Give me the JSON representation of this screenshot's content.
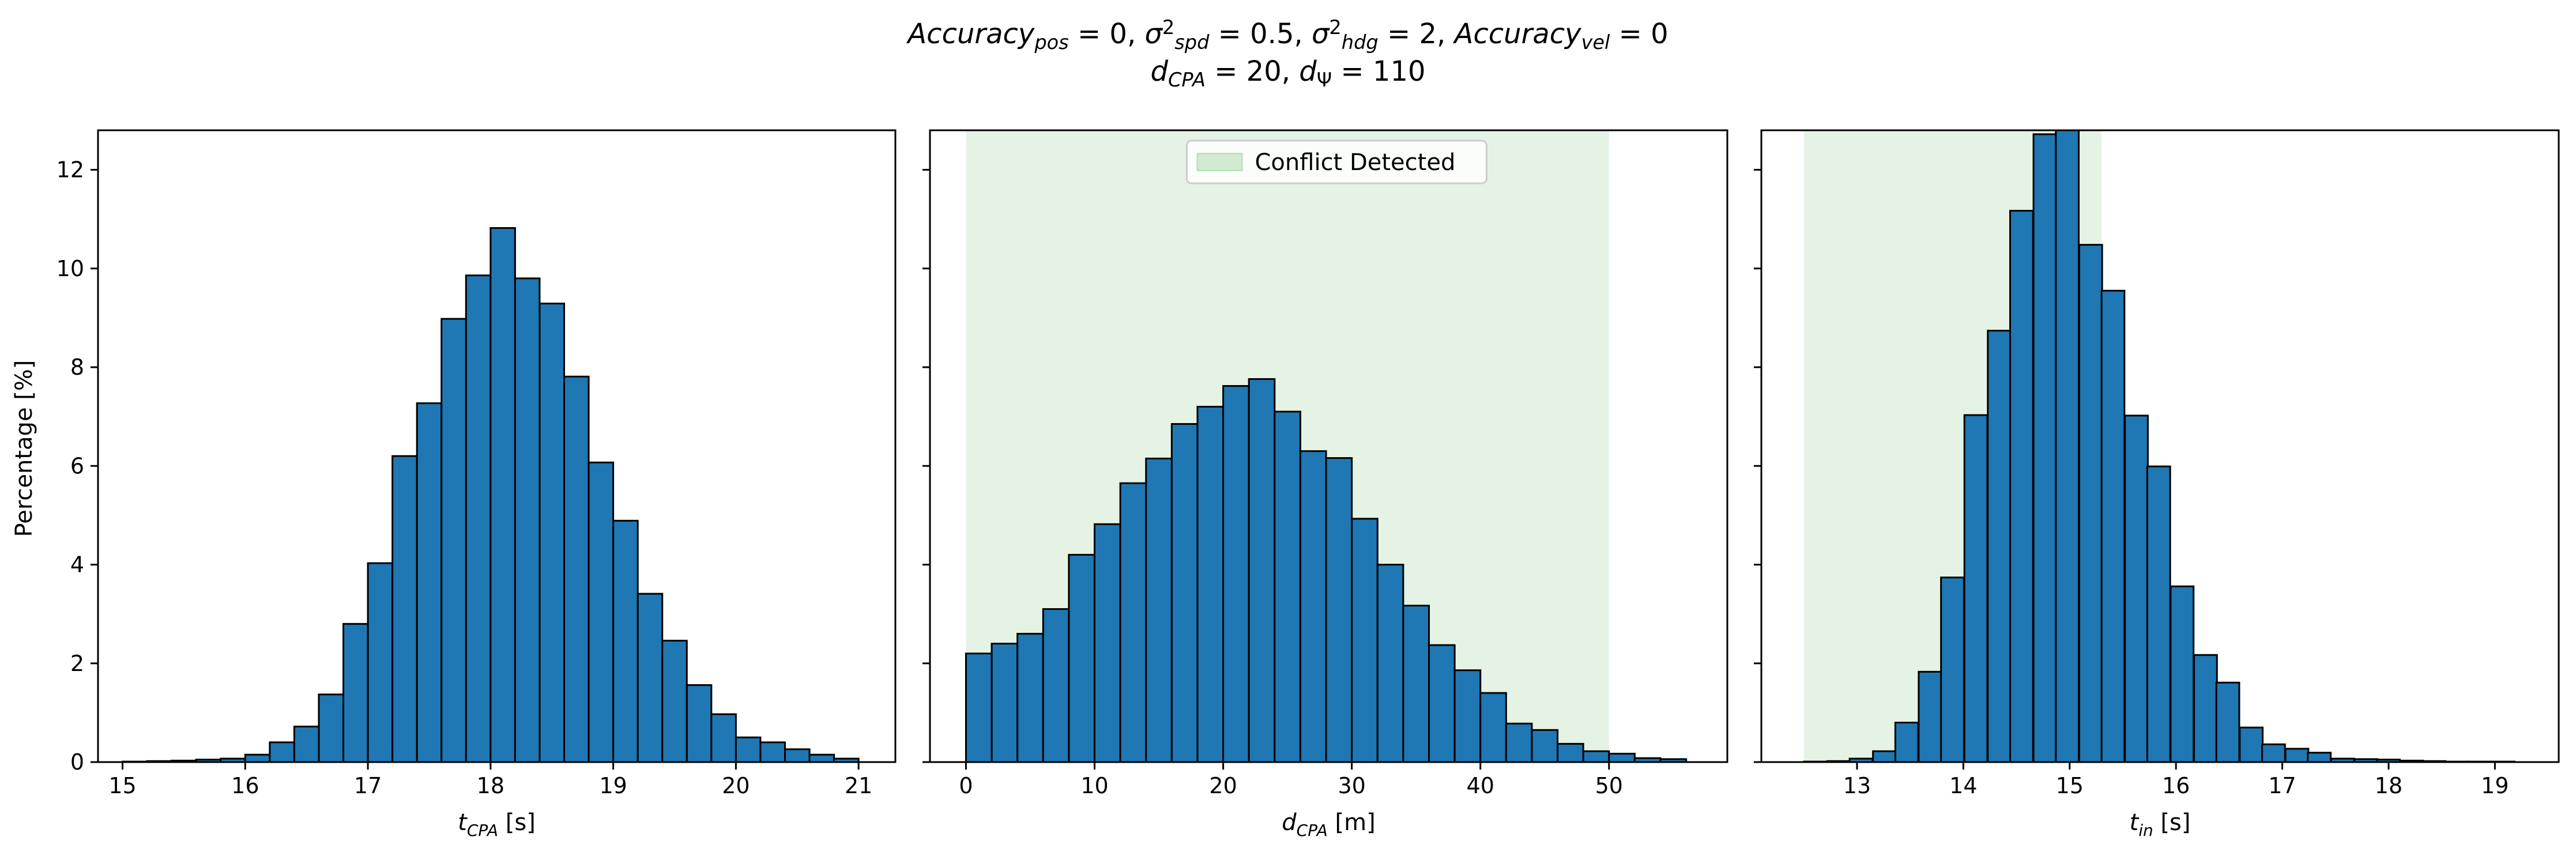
{
  "figure": {
    "title": {
      "line1": [
        {
          "t": "Accuracy",
          "i": true
        },
        {
          "t": "pos",
          "i": true,
          "sub": true
        },
        {
          "t": " = 0, "
        },
        {
          "t": "σ",
          "i": true
        },
        {
          "t": "2",
          "sup": true
        },
        {
          "t": "spd",
          "i": true,
          "sub": true
        },
        {
          "t": " = 0.5, "
        },
        {
          "t": "σ",
          "i": true
        },
        {
          "t": "2",
          "sup": true
        },
        {
          "t": "hdg",
          "i": true,
          "sub": true
        },
        {
          "t": " = 2, "
        },
        {
          "t": "Accuracy",
          "i": true
        },
        {
          "t": "vel",
          "i": true,
          "sub": true
        },
        {
          "t": " = 0"
        }
      ],
      "line2": [
        {
          "t": "d",
          "i": true
        },
        {
          "t": "CPA",
          "i": true,
          "sub": true
        },
        {
          "t": " = 20, "
        },
        {
          "t": "d",
          "i": true
        },
        {
          "t": "Ψ",
          "sub": true
        },
        {
          "t": " = 110"
        }
      ]
    },
    "shared_ylabel": "Percentage [%]",
    "colors": {
      "bar": "#1f77b4",
      "edge": "#000000",
      "span": "#2ca02c"
    }
  },
  "chart_data": [
    {
      "type": "bar",
      "xlabel": [
        {
          "t": "t",
          "i": true
        },
        {
          "t": "CPA",
          "i": true,
          "sub": true
        },
        {
          "t": " [s]"
        }
      ],
      "ylabel": "Percentage [%]",
      "xlim": [
        14.8,
        21.3
      ],
      "ylim": [
        0,
        12.8
      ],
      "xticks": [
        15,
        16,
        17,
        18,
        19,
        20,
        21
      ],
      "yticks": [
        0,
        2,
        4,
        6,
        8,
        10,
        12
      ],
      "bin_width": 0.2,
      "bins": [
        [
          15.0,
          0.01
        ],
        [
          15.2,
          0.02
        ],
        [
          15.4,
          0.03
        ],
        [
          15.6,
          0.05
        ],
        [
          15.8,
          0.07
        ],
        [
          16.0,
          0.15
        ],
        [
          16.2,
          0.4
        ],
        [
          16.4,
          0.72
        ],
        [
          16.6,
          1.37
        ],
        [
          16.8,
          2.8
        ],
        [
          17.0,
          4.03
        ],
        [
          17.2,
          6.2
        ],
        [
          17.4,
          7.27
        ],
        [
          17.6,
          8.98
        ],
        [
          17.8,
          9.86
        ],
        [
          18.0,
          10.82
        ],
        [
          18.2,
          9.8
        ],
        [
          18.4,
          9.29
        ],
        [
          18.6,
          7.81
        ],
        [
          18.8,
          6.07
        ],
        [
          19.0,
          4.89
        ],
        [
          19.2,
          3.41
        ],
        [
          19.4,
          2.46
        ],
        [
          19.6,
          1.56
        ],
        [
          19.8,
          0.97
        ],
        [
          20.0,
          0.5
        ],
        [
          20.2,
          0.4
        ],
        [
          20.4,
          0.26
        ],
        [
          20.6,
          0.15
        ],
        [
          20.8,
          0.07
        ]
      ]
    },
    {
      "type": "bar",
      "xlabel": [
        {
          "t": "d",
          "i": true
        },
        {
          "t": "CPA",
          "i": true,
          "sub": true
        },
        {
          "t": " [m]"
        }
      ],
      "xlim": [
        -2.8,
        59.2
      ],
      "ylim": [
        0,
        12.8
      ],
      "xticks": [
        0,
        10,
        20,
        30,
        40,
        50
      ],
      "yticks": [
        0,
        2,
        4,
        6,
        8,
        10,
        12
      ],
      "bin_width": 2.0,
      "span": {
        "x0": 0,
        "x1": 50,
        "label": "Conflict Detected",
        "color": "#2ca02c",
        "alpha": 0.12
      },
      "legend": {
        "location": "upper center",
        "entries": [
          "Conflict Detected"
        ]
      },
      "bins": [
        [
          0,
          2.2
        ],
        [
          2,
          2.4
        ],
        [
          4,
          2.6
        ],
        [
          6,
          3.1
        ],
        [
          8,
          4.2
        ],
        [
          10,
          4.82
        ],
        [
          12,
          5.65
        ],
        [
          14,
          6.15
        ],
        [
          16,
          6.85
        ],
        [
          18,
          7.2
        ],
        [
          20,
          7.62
        ],
        [
          22,
          7.76
        ],
        [
          24,
          7.1
        ],
        [
          26,
          6.3
        ],
        [
          28,
          6.16
        ],
        [
          30,
          4.93
        ],
        [
          32,
          4.0
        ],
        [
          34,
          3.17
        ],
        [
          36,
          2.37
        ],
        [
          38,
          1.86
        ],
        [
          40,
          1.4
        ],
        [
          42,
          0.78
        ],
        [
          44,
          0.65
        ],
        [
          46,
          0.37
        ],
        [
          48,
          0.22
        ],
        [
          50,
          0.17
        ],
        [
          52,
          0.08
        ],
        [
          54,
          0.06
        ]
      ]
    },
    {
      "type": "bar",
      "xlabel": [
        {
          "t": "t",
          "i": true
        },
        {
          "t": "in",
          "i": true,
          "sub": true
        },
        {
          "t": " [s]"
        }
      ],
      "xlim": [
        12.1,
        19.6
      ],
      "ylim": [
        0,
        12.8
      ],
      "xticks": [
        13,
        14,
        15,
        16,
        17,
        18,
        19
      ],
      "yticks": [
        0,
        2,
        4,
        6,
        8,
        10,
        12
      ],
      "bin_width": 0.2155,
      "span": {
        "x0": 12.5,
        "x1": 15.3,
        "color": "#2ca02c",
        "alpha": 0.12
      },
      "bins": [
        [
          12.5,
          0.01
        ],
        [
          12.72,
          0.02
        ],
        [
          12.93,
          0.07
        ],
        [
          13.15,
          0.22
        ],
        [
          13.36,
          0.8
        ],
        [
          13.58,
          1.83
        ],
        [
          13.79,
          3.74
        ],
        [
          14.01,
          7.03
        ],
        [
          14.23,
          8.74
        ],
        [
          14.44,
          11.17
        ],
        [
          14.66,
          12.72
        ],
        [
          14.87,
          12.93
        ],
        [
          15.09,
          10.48
        ],
        [
          15.3,
          9.55
        ],
        [
          15.52,
          7.02
        ],
        [
          15.73,
          5.99
        ],
        [
          15.95,
          3.56
        ],
        [
          16.17,
          2.17
        ],
        [
          16.38,
          1.61
        ],
        [
          16.6,
          0.7
        ],
        [
          16.81,
          0.36
        ],
        [
          17.03,
          0.27
        ],
        [
          17.24,
          0.19
        ],
        [
          17.46,
          0.07
        ],
        [
          17.68,
          0.06
        ],
        [
          17.89,
          0.05
        ],
        [
          18.11,
          0.03
        ],
        [
          18.32,
          0.02
        ],
        [
          18.54,
          0.01
        ],
        [
          18.75,
          0.01
        ],
        [
          18.97,
          0.01
        ]
      ]
    }
  ]
}
